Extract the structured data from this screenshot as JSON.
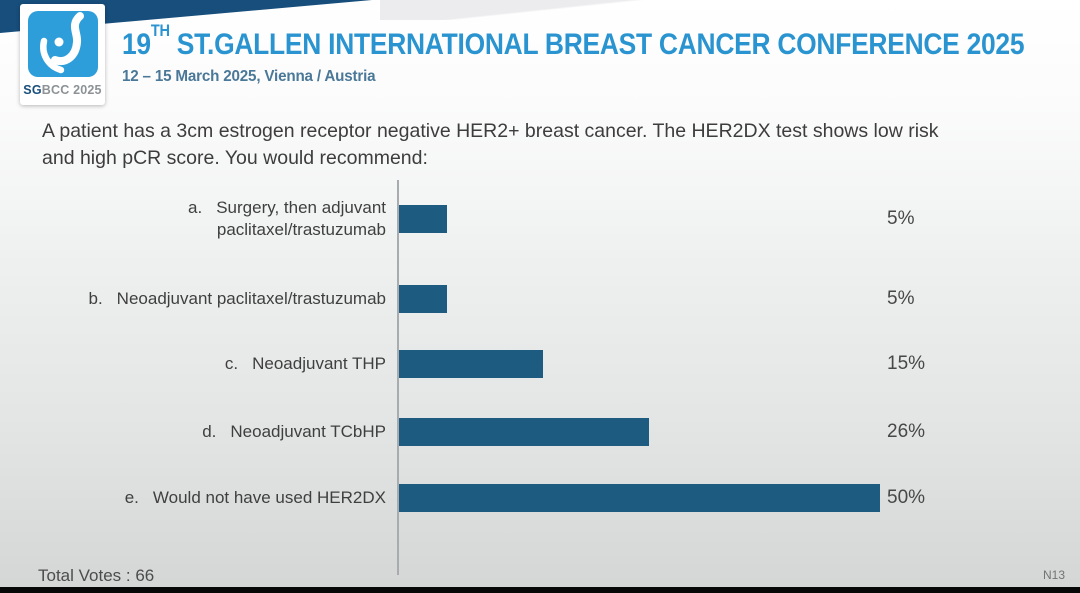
{
  "header": {
    "logo": {
      "brand_bold": "SG",
      "brand_rest": "BCC 2025"
    },
    "title_num": "19",
    "title_sup": "TH",
    "title_rest": " ST.GALLEN INTERNATIONAL BREAST CANCER CONFERENCE 2025",
    "subtitle": "12 – 15 March 2025, Vienna / Austria"
  },
  "question": {
    "line1": "A patient has a 3cm estrogen receptor negative HER2+ breast cancer. The HER2DX test shows low risk",
    "line2": "and high pCR score. You would recommend:"
  },
  "chart_data": {
    "type": "bar",
    "orientation": "horizontal",
    "title": "A patient has a 3cm estrogen receptor negative HER2+ breast cancer. The HER2DX test shows low risk and high pCR score. You would recommend:",
    "xlabel": "",
    "ylabel": "",
    "xlim": [
      0,
      50
    ],
    "grid": false,
    "legend": "none",
    "bar_color": "#1e5b80",
    "value_unit": "%",
    "rows": [
      {
        "letter": "a.",
        "label": "Surgery, then adjuvant",
        "label_line2": "paclitaxel/trastuzumab",
        "value": 5,
        "pct_label": "5%"
      },
      {
        "letter": "b.",
        "label": "Neoadjuvant paclitaxel/trastuzumab",
        "label_line2": "",
        "value": 5,
        "pct_label": "5%"
      },
      {
        "letter": "c.",
        "label": "Neoadjuvant THP",
        "label_line2": "",
        "value": 15,
        "pct_label": "15%"
      },
      {
        "letter": "d.",
        "label": "Neoadjuvant TCbHP",
        "label_line2": "",
        "value": 26,
        "pct_label": "26%"
      },
      {
        "letter": "e.",
        "label": "Would not have used HER2DX",
        "label_line2": "",
        "value": 50,
        "pct_label": "50%"
      }
    ],
    "total_votes": 66
  },
  "footer": {
    "total_votes_label": "Total Votes : 66",
    "slide_code": "N13"
  },
  "colors": {
    "accent_blue": "#2a94d1",
    "navy": "#174e7c",
    "logo_blue": "#2d9ed9",
    "bar": "#1e5b80"
  }
}
